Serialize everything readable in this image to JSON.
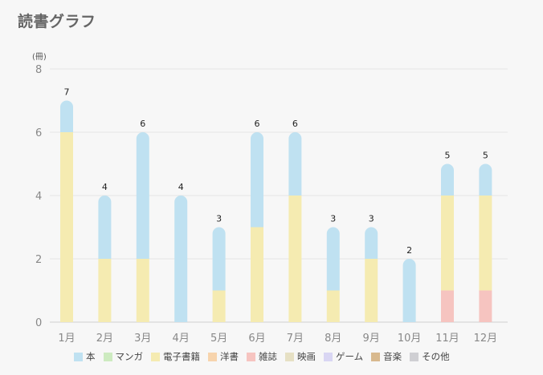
{
  "page": {
    "title": "読書グラフ"
  },
  "chart_data": {
    "type": "bar",
    "stacked": true,
    "title": "",
    "unit": "(冊)",
    "xlabel": "",
    "ylabel": "",
    "ylim": [
      0,
      8
    ],
    "yticks": [
      0,
      2,
      4,
      6,
      8
    ],
    "grid": true,
    "legend_position": "bottom",
    "categories": [
      "1月",
      "2月",
      "3月",
      "4月",
      "5月",
      "6月",
      "7月",
      "8月",
      "9月",
      "10月",
      "11月",
      "12月"
    ],
    "totals": [
      7,
      4,
      6,
      4,
      3,
      6,
      6,
      3,
      3,
      2,
      5,
      5
    ],
    "series": [
      {
        "name": "洋書",
        "color": "#f7d4ad",
        "values": [
          0,
          0,
          0,
          0,
          0,
          0,
          0,
          0,
          0,
          0,
          0,
          0
        ]
      },
      {
        "name": "雑誌",
        "color": "#f6c4c0",
        "values": [
          0,
          0,
          0,
          0,
          0,
          0,
          0,
          0,
          0,
          0,
          1,
          1
        ]
      },
      {
        "name": "電子書籍",
        "color": "#f5ebb1",
        "values": [
          6,
          2,
          2,
          0,
          1,
          3,
          4,
          1,
          2,
          0,
          3,
          3
        ]
      },
      {
        "name": "本",
        "color": "#bfe1f1",
        "values": [
          1,
          2,
          4,
          4,
          2,
          3,
          2,
          2,
          1,
          2,
          1,
          1
        ]
      },
      {
        "name": "マンガ",
        "color": "#cdebc0",
        "values": [
          0,
          0,
          0,
          0,
          0,
          0,
          0,
          0,
          0,
          0,
          0,
          0
        ]
      },
      {
        "name": "映画",
        "color": "#e6e0c4",
        "values": [
          0,
          0,
          0,
          0,
          0,
          0,
          0,
          0,
          0,
          0,
          0,
          0
        ]
      },
      {
        "name": "ゲーム",
        "color": "#d9d6f3",
        "values": [
          0,
          0,
          0,
          0,
          0,
          0,
          0,
          0,
          0,
          0,
          0,
          0
        ]
      },
      {
        "name": "音楽",
        "color": "#d8b98e",
        "values": [
          0,
          0,
          0,
          0,
          0,
          0,
          0,
          0,
          0,
          0,
          0,
          0
        ]
      },
      {
        "name": "その他",
        "color": "#cfcfd3",
        "values": [
          0,
          0,
          0,
          0,
          0,
          0,
          0,
          0,
          0,
          0,
          0,
          0
        ]
      }
    ],
    "legend": [
      {
        "name": "本",
        "color": "#bfe1f1"
      },
      {
        "name": "マンガ",
        "color": "#cdebc0"
      },
      {
        "name": "電子書籍",
        "color": "#f5ebb1"
      },
      {
        "name": "洋書",
        "color": "#f7d4ad"
      },
      {
        "name": "雑誌",
        "color": "#f6c4c0"
      },
      {
        "name": "映画",
        "color": "#e6e0c4"
      },
      {
        "name": "ゲーム",
        "color": "#d9d6f3"
      },
      {
        "name": "音楽",
        "color": "#d8b98e"
      },
      {
        "name": "その他",
        "color": "#cfcfd3"
      }
    ]
  }
}
